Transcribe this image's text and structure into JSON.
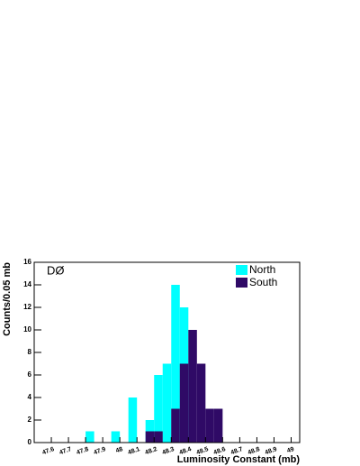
{
  "chart_data": {
    "type": "histogram",
    "xlabel": "Luminosity Constant (mb)",
    "ylabel": "Counts/0.05 mb",
    "annotation": "DØ",
    "bins": [
      47.5,
      47.55,
      47.6,
      47.65,
      47.7,
      47.75,
      47.8,
      47.85,
      47.9,
      47.95,
      48.0,
      48.05,
      48.1,
      48.15,
      48.2,
      48.25,
      48.3,
      48.35,
      48.4,
      48.45,
      48.5,
      48.55,
      48.6,
      48.65,
      48.7,
      48.75,
      48.8,
      48.85,
      48.9,
      48.95,
      49.0,
      49.05
    ],
    "series": [
      {
        "name": "North",
        "color": "#00ffff",
        "values": [
          0,
          0,
          0,
          0,
          0,
          0,
          1,
          0,
          0,
          1,
          0,
          4,
          0,
          2,
          6,
          7,
          14,
          12,
          0,
          0,
          0,
          0,
          0,
          0,
          0,
          0,
          0,
          0,
          0,
          0,
          0
        ]
      },
      {
        "name": "South",
        "color": "#2f0a66",
        "values": [
          0,
          0,
          0,
          0,
          0,
          0,
          0,
          0,
          0,
          0,
          0,
          0,
          0,
          1,
          1,
          0,
          3,
          7,
          10,
          7,
          3,
          3,
          0,
          0,
          0,
          0,
          0,
          0,
          0,
          0,
          0
        ]
      }
    ],
    "xlim": [
      47.5,
      49.05
    ],
    "ylim": [
      0,
      16
    ],
    "xticks": [
      47.6,
      47.7,
      47.8,
      47.9,
      48,
      48.1,
      48.2,
      48.3,
      48.4,
      48.5,
      48.6,
      48.7,
      48.8,
      48.9,
      49
    ],
    "yticks": [
      0,
      2,
      4,
      6,
      8,
      10,
      12,
      14,
      16
    ],
    "legend": "upper right"
  }
}
